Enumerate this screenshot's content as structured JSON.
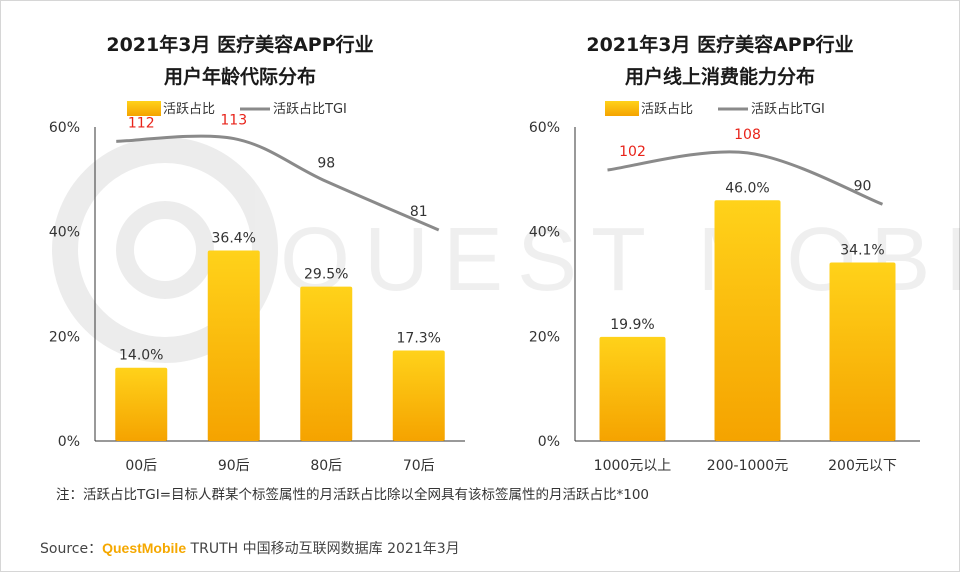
{
  "chart_data": [
    {
      "type": "bar",
      "title": "2021年3月 医疗美容APP行业",
      "subtitle": "用户年龄代际分布",
      "categories": [
        "00后",
        "90后",
        "80后",
        "70后"
      ],
      "series": [
        {
          "name": "活跃占比",
          "values": [
            14.0,
            36.4,
            29.5,
            17.3
          ],
          "labels": [
            "14.0%",
            "36.4%",
            "29.5%",
            "17.3%"
          ]
        },
        {
          "name": "活跃占比TGI",
          "type": "line",
          "values": [
            112,
            113,
            98,
            81
          ],
          "labels": [
            "112",
            "113",
            "98",
            "81"
          ]
        }
      ],
      "ylim": [
        0,
        60
      ],
      "yticks": [
        "0%",
        "20%",
        "40%",
        "60%"
      ],
      "tgi_highlight": [
        true,
        true,
        false,
        false
      ]
    },
    {
      "type": "bar",
      "title": "2021年3月 医疗美容APP行业",
      "subtitle": "用户线上消费能力分布",
      "categories": [
        "1000元以上",
        "200-1000元",
        "200元以下"
      ],
      "series": [
        {
          "name": "活跃占比",
          "values": [
            19.9,
            46.0,
            34.1
          ],
          "labels": [
            "19.9%",
            "46.0%",
            "34.1%"
          ]
        },
        {
          "name": "活跃占比TGI",
          "type": "line",
          "values": [
            102,
            108,
            90
          ],
          "labels": [
            "102",
            "108",
            "90"
          ]
        }
      ],
      "ylim": [
        0,
        60
      ],
      "yticks": [
        "0%",
        "20%",
        "40%",
        "60%"
      ],
      "tgi_highlight": [
        true,
        true,
        false
      ]
    }
  ],
  "colors": {
    "bar_top": "#ffd21a",
    "bar_bottom": "#f5a300",
    "line": "#8a8a8a",
    "highlight": "#e8231a",
    "label": "#333333",
    "axis": "#333333"
  },
  "watermark": {
    "text": "QUEST MOBILE"
  },
  "note": "注：活跃占比TGI=目标人群某个标签属性的月活跃占比除以全网具有该标签属性的月活跃占比*100",
  "source": {
    "prefix": "Source：",
    "brand": "QuestMobile",
    "suffix": " TRUTH 中国移动互联网数据库 2021年3月"
  }
}
